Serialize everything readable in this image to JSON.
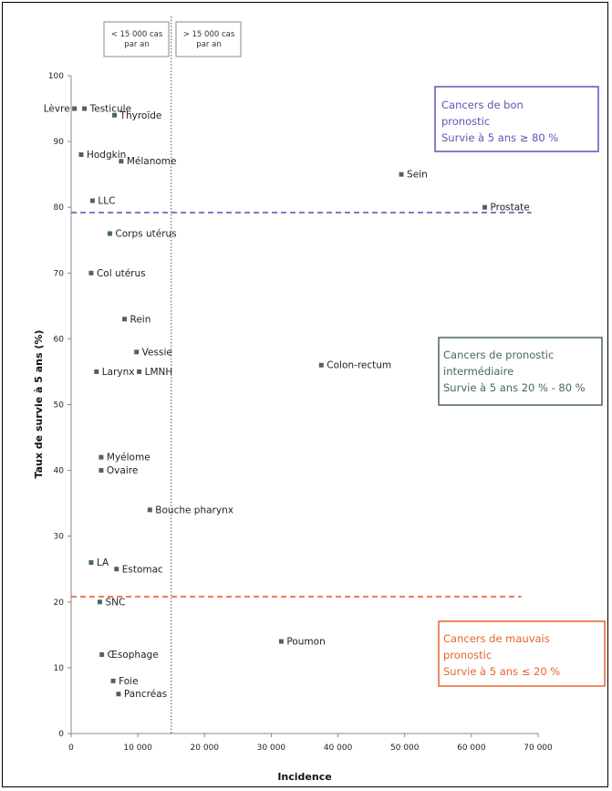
{
  "chart_data": {
    "type": "scatter",
    "xlabel": "Incidence",
    "ylabel": "Taux de survie à 5 ans (%)",
    "xlim": [
      0,
      70000
    ],
    "ylim": [
      0,
      100
    ],
    "xticks": [
      0,
      10000,
      20000,
      30000,
      40000,
      50000,
      60000,
      70000
    ],
    "xtick_labels": [
      "0",
      "10 000",
      "20 000",
      "30 000",
      "40 000",
      "50 000",
      "60 000",
      "70 000"
    ],
    "yticks": [
      0,
      10,
      20,
      30,
      40,
      50,
      60,
      70,
      80,
      90,
      100
    ],
    "ytick_labels": [
      "0",
      "10",
      "20",
      "30",
      "40",
      "50",
      "60",
      "70",
      "80",
      "90",
      "100"
    ],
    "marker_color": "#4a6468",
    "points": [
      {
        "label": "Lèvre",
        "x": 500,
        "y": 95,
        "label_side": "left"
      },
      {
        "label": "Testicule",
        "x": 2000,
        "y": 95,
        "label_side": "right"
      },
      {
        "label": "Thyroïde",
        "x": 6500,
        "y": 94,
        "label_side": "right"
      },
      {
        "label": "Hodgkin",
        "x": 1500,
        "y": 88,
        "label_side": "right"
      },
      {
        "label": "Mélanome",
        "x": 7500,
        "y": 87,
        "label_side": "right"
      },
      {
        "label": "LLC",
        "x": 3200,
        "y": 81,
        "label_side": "right"
      },
      {
        "label": "Corps utérus",
        "x": 5800,
        "y": 76,
        "label_side": "right"
      },
      {
        "label": "Col utérus",
        "x": 3000,
        "y": 70,
        "label_side": "right"
      },
      {
        "label": "Rein",
        "x": 8000,
        "y": 63,
        "label_side": "right"
      },
      {
        "label": "Vessie",
        "x": 9800,
        "y": 58,
        "label_side": "right"
      },
      {
        "label": "Larynx",
        "x": 3800,
        "y": 55,
        "label_side": "right"
      },
      {
        "label": "LMNH",
        "x": 10200,
        "y": 55,
        "label_side": "right"
      },
      {
        "label": "Myélome",
        "x": 4500,
        "y": 42,
        "label_side": "right"
      },
      {
        "label": "Ovaire",
        "x": 4500,
        "y": 40,
        "label_side": "right"
      },
      {
        "label": "Bouche pharynx",
        "x": 11800,
        "y": 34,
        "label_side": "right"
      },
      {
        "label": "LA",
        "x": 3000,
        "y": 26,
        "label_side": "right"
      },
      {
        "label": "Estomac",
        "x": 6800,
        "y": 25,
        "label_side": "right"
      },
      {
        "label": "SNC",
        "x": 4300,
        "y": 20,
        "label_side": "right"
      },
      {
        "label": "Œsophage",
        "x": 4600,
        "y": 12,
        "label_side": "right"
      },
      {
        "label": "Foie",
        "x": 6300,
        "y": 8,
        "label_side": "right"
      },
      {
        "label": "Pancréas",
        "x": 7100,
        "y": 6,
        "label_side": "right"
      },
      {
        "label": "Sein",
        "x": 49500,
        "y": 85,
        "label_side": "right"
      },
      {
        "label": "Prostate",
        "x": 62000,
        "y": 80,
        "label_side": "right"
      },
      {
        "label": "Colon-rectum",
        "x": 37500,
        "y": 56,
        "label_side": "right"
      },
      {
        "label": "Poumon",
        "x": 31500,
        "y": 14,
        "label_side": "right"
      }
    ],
    "reference_lines": [
      {
        "orientation": "vertical",
        "x": 15000,
        "color": "#3d5a60",
        "style": "dotted"
      },
      {
        "orientation": "horizontal",
        "y": 79.2,
        "x_range": [
          0,
          69000
        ],
        "color": "#5b4bb0",
        "style": "dashed"
      },
      {
        "orientation": "horizontal",
        "y": 20.8,
        "x_range": [
          0,
          67500
        ],
        "color": "#e8502a",
        "style": "dashed"
      }
    ]
  },
  "threshold_boxes": {
    "left": {
      "line1": "< 15 000 cas",
      "line2": "par an"
    },
    "right": {
      "line1": "> 15 000 cas",
      "line2": "par an"
    }
  },
  "zones": {
    "good": {
      "line1": "Cancers de bon",
      "line2": "pronostic",
      "line3": "Survie à 5 ans ≥ 80 %",
      "color": "#6a4fb8"
    },
    "intermediate": {
      "line1": "Cancers de pronostic",
      "line2": "intermédiaire",
      "line3": "Survie à 5 ans 20 % - 80 %",
      "color": "#4a6468"
    },
    "bad": {
      "line1": "Cancers de mauvais",
      "line2": "pronostic",
      "line3": "Survie à 5 ans ≤ 20 %",
      "color": "#e8642a"
    }
  }
}
